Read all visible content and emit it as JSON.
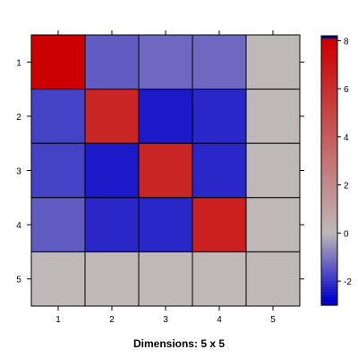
{
  "chart_data": {
    "type": "heatmap",
    "title": "",
    "xlabel": "Dimensions: 5 x 5",
    "ylabel": "",
    "x_categories": [
      "1",
      "2",
      "3",
      "4",
      "5"
    ],
    "y_categories": [
      "1",
      "2",
      "3",
      "4",
      "5"
    ],
    "values": [
      [
        8.0,
        -1.4,
        -1.2,
        -1.2,
        0.0
      ],
      [
        -1.8,
        6.4,
        -2.4,
        -2.2,
        0.0
      ],
      [
        -1.8,
        -2.4,
        6.4,
        -2.2,
        0.0
      ],
      [
        -1.4,
        -2.2,
        -2.2,
        6.6,
        0.0
      ],
      [
        0.0,
        0.0,
        0.0,
        0.0,
        0.0
      ]
    ],
    "colorbar": {
      "range": [
        -3,
        8.2
      ],
      "ticks": [
        -2,
        0,
        2,
        4,
        6,
        8
      ],
      "tick_labels": [
        "-2",
        "0",
        "2",
        "4",
        "6",
        "8"
      ],
      "low_color": "#0000cc",
      "mid_color": "#bfb8b8",
      "high_color": "#cc0000",
      "max_cap_color": "#0a0a66"
    },
    "grid": true,
    "legend_position": "right"
  }
}
